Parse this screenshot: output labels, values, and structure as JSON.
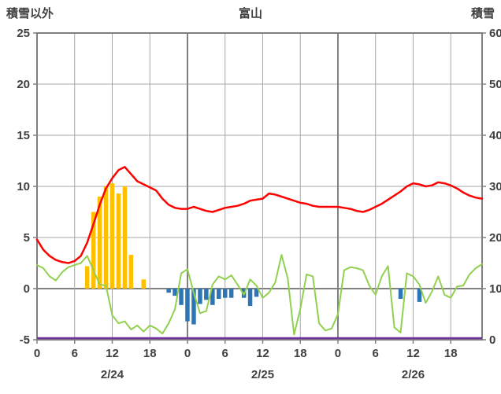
{
  "header": {
    "left_axis_title": "積雪以外",
    "chart_title": "富山",
    "right_axis_title": "積雪"
  },
  "chart_data": {
    "type": "combo",
    "title": "富山",
    "left_axis": {
      "label": "積雪以外",
      "min": -5,
      "max": 25,
      "ticks": [
        25,
        20,
        15,
        10,
        5,
        0,
        -5
      ]
    },
    "right_axis": {
      "label": "積雪",
      "min": 0,
      "max": 60,
      "ticks": [
        60,
        50,
        40,
        30,
        20,
        10,
        0
      ]
    },
    "x_axis": {
      "hours_total": 72,
      "tick_hours": [
        0,
        6,
        12,
        18,
        24,
        30,
        36,
        42,
        48,
        54,
        60,
        66
      ],
      "tick_labels": [
        "0",
        "6",
        "12",
        "18",
        "0",
        "6",
        "12",
        "18",
        "0",
        "6",
        "12",
        "18"
      ],
      "day_labels": [
        {
          "label": "2/24",
          "hour": 12
        },
        {
          "label": "2/25",
          "hour": 36
        },
        {
          "label": "2/26",
          "hour": 60
        }
      ]
    },
    "grid": {
      "light": "#A6A6A6",
      "dark": "#808080",
      "zero": "#808080"
    },
    "series": [
      {
        "id": "orange-bars",
        "type": "bar",
        "axis": "left",
        "color": "#FFC000",
        "values": [
          null,
          null,
          null,
          null,
          null,
          null,
          null,
          null,
          2.2,
          7.5,
          9.0,
          10.0,
          10.3,
          9.3,
          10.0,
          3.3,
          null,
          0.9,
          null,
          null,
          null,
          null,
          null,
          null,
          null,
          null,
          null,
          null,
          null,
          null,
          null,
          null,
          null,
          null,
          null,
          null,
          null,
          null,
          null,
          null,
          null,
          null,
          null,
          null,
          null,
          null,
          null,
          null,
          null,
          null,
          null,
          null,
          null,
          null,
          null,
          null,
          null,
          null,
          null,
          null,
          null,
          null,
          null,
          null,
          null,
          null,
          null,
          null,
          null,
          null,
          null,
          null
        ]
      },
      {
        "id": "blue-bars",
        "type": "bar",
        "axis": "left",
        "color": "#2E75B6",
        "values": [
          null,
          null,
          null,
          null,
          null,
          null,
          null,
          null,
          null,
          null,
          null,
          null,
          null,
          null,
          null,
          null,
          null,
          null,
          null,
          null,
          null,
          -0.4,
          -0.7,
          -1.6,
          -3.2,
          -3.5,
          -1.5,
          -1.1,
          -1.6,
          -1.0,
          -0.9,
          -0.9,
          null,
          -0.9,
          -1.7,
          -0.8,
          null,
          null,
          null,
          null,
          null,
          null,
          null,
          null,
          null,
          null,
          null,
          null,
          null,
          null,
          null,
          null,
          null,
          null,
          null,
          null,
          null,
          null,
          -1.0,
          null,
          null,
          -1.3,
          null,
          null,
          null,
          null,
          null,
          null,
          null,
          null,
          null,
          null
        ]
      },
      {
        "id": "purple-line",
        "type": "constant-line",
        "axis": "right",
        "color": "#7030A0",
        "width": 2.5,
        "value": 0.3
      },
      {
        "id": "green-line",
        "type": "line",
        "axis": "left",
        "color": "#92D050",
        "width": 2,
        "values": [
          2.3,
          2.0,
          1.2,
          0.8,
          1.6,
          2.1,
          2.3,
          2.5,
          3.2,
          1.8,
          0.4,
          0.3,
          -2.6,
          -3.4,
          -3.2,
          -4.0,
          -3.6,
          -4.2,
          -3.6,
          -3.9,
          -4.4,
          -3.4,
          -2.0,
          1.5,
          1.9,
          -0.4,
          -2.4,
          -2.2,
          0.4,
          1.2,
          0.9,
          1.3,
          0.4,
          -0.6,
          0.9,
          0.3,
          -0.9,
          -0.4,
          0.6,
          3.3,
          1.0,
          -4.5,
          -2.0,
          1.4,
          1.2,
          -3.4,
          -4.1,
          -3.9,
          -2.5,
          1.8,
          2.1,
          2.0,
          1.8,
          0.3,
          -0.6,
          1.2,
          2.2,
          -3.8,
          -4.3,
          1.5,
          1.2,
          0.4,
          -1.4,
          -0.3,
          1.2,
          -0.6,
          -0.9,
          0.2,
          0.3,
          1.4,
          2.0,
          2.4
        ]
      },
      {
        "id": "red-line",
        "type": "line",
        "axis": "left",
        "color": "#FF0000",
        "width": 2.5,
        "values": [
          4.8,
          3.8,
          3.2,
          2.8,
          2.6,
          2.5,
          2.7,
          3.2,
          4.5,
          6.3,
          8.2,
          9.8,
          10.8,
          11.6,
          11.9,
          11.2,
          10.5,
          10.2,
          9.9,
          9.6,
          8.8,
          8.2,
          7.9,
          7.8,
          7.8,
          8.0,
          7.8,
          7.6,
          7.5,
          7.7,
          7.9,
          8.0,
          8.1,
          8.3,
          8.6,
          8.7,
          8.8,
          9.3,
          9.2,
          9.0,
          8.8,
          8.6,
          8.4,
          8.3,
          8.1,
          8.0,
          8.0,
          8.0,
          8.0,
          7.9,
          7.8,
          7.6,
          7.5,
          7.7,
          8.0,
          8.3,
          8.7,
          9.1,
          9.5,
          10.0,
          10.3,
          10.2,
          10.0,
          10.1,
          10.4,
          10.3,
          10.1,
          9.8,
          9.4,
          9.1,
          8.9,
          8.8
        ]
      }
    ]
  }
}
